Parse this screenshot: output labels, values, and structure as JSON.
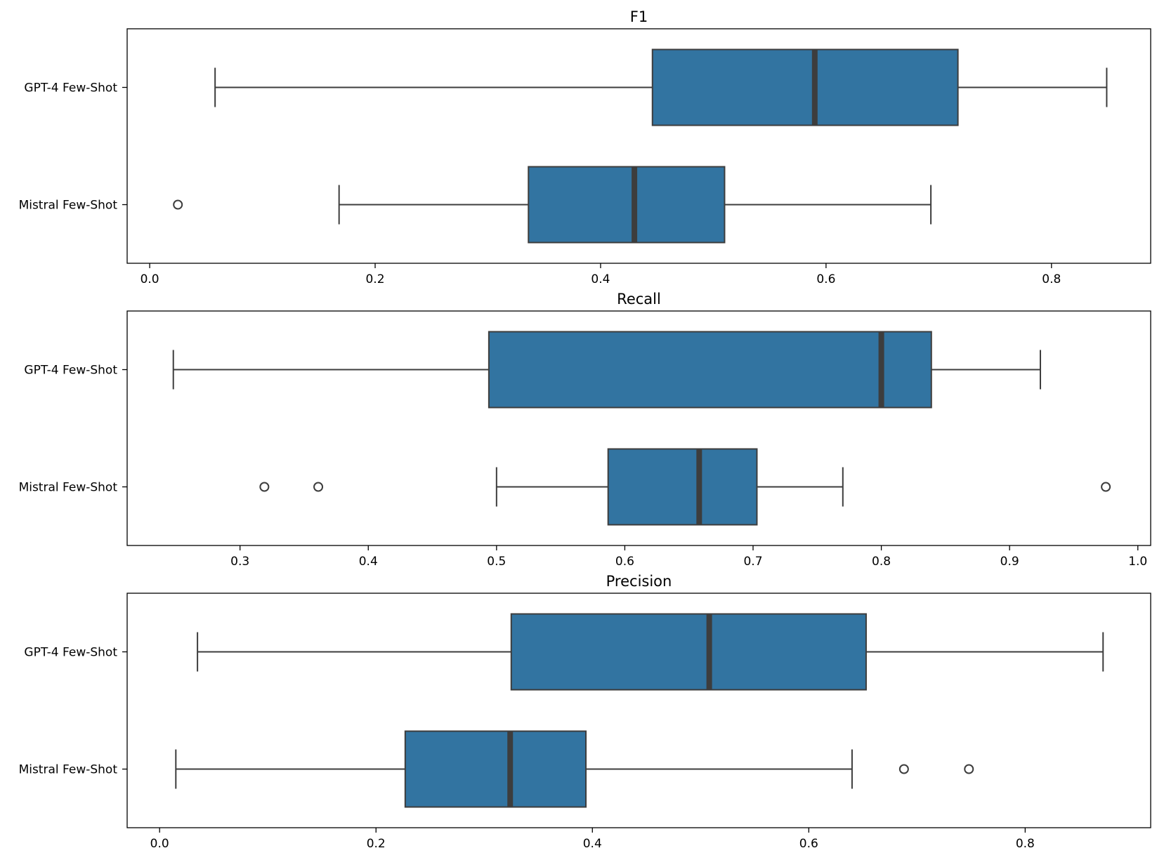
{
  "chart_data": [
    {
      "type": "boxplot",
      "orientation": "horizontal",
      "title": "F1",
      "xlabel": "",
      "ylabel": "",
      "xlim": [
        -0.02,
        0.888
      ],
      "xticks": [
        0.0,
        0.2,
        0.4,
        0.6,
        0.8
      ],
      "tick_labels": [
        "0.0",
        "0.2",
        "0.4",
        "0.6",
        "0.8"
      ],
      "categories": [
        "GPT-4 Few-Shot",
        "Mistral Few-Shot"
      ],
      "series": [
        {
          "name": "GPT-4 Few-Shot",
          "whisker_low": 0.058,
          "q1": 0.446,
          "median": 0.59,
          "q3": 0.717,
          "whisker_high": 0.849,
          "outliers": []
        },
        {
          "name": "Mistral Few-Shot",
          "whisker_low": 0.168,
          "q1": 0.336,
          "median": 0.43,
          "q3": 0.51,
          "whisker_high": 0.693,
          "outliers": [
            0.025
          ]
        }
      ]
    },
    {
      "type": "boxplot",
      "orientation": "horizontal",
      "title": "Recall",
      "xlabel": "",
      "ylabel": "",
      "xlim": [
        0.212,
        1.01
      ],
      "xticks": [
        0.3,
        0.4,
        0.5,
        0.6,
        0.7,
        0.8,
        0.9,
        1.0
      ],
      "tick_labels": [
        "0.3",
        "0.4",
        "0.5",
        "0.6",
        "0.7",
        "0.8",
        "0.9",
        "1.0"
      ],
      "categories": [
        "GPT-4 Few-Shot",
        "Mistral Few-Shot"
      ],
      "series": [
        {
          "name": "GPT-4 Few-Shot",
          "whisker_low": 0.248,
          "q1": 0.494,
          "median": 0.8,
          "q3": 0.839,
          "whisker_high": 0.924,
          "outliers": []
        },
        {
          "name": "Mistral Few-Shot",
          "whisker_low": 0.5,
          "q1": 0.587,
          "median": 0.658,
          "q3": 0.703,
          "whisker_high": 0.77,
          "outliers": [
            0.319,
            0.361,
            0.975
          ]
        }
      ]
    },
    {
      "type": "boxplot",
      "orientation": "horizontal",
      "title": "Precision",
      "xlabel": "",
      "ylabel": "",
      "xlim": [
        -0.03,
        0.916
      ],
      "xticks": [
        0.0,
        0.2,
        0.4,
        0.6,
        0.8
      ],
      "tick_labels": [
        "0.0",
        "0.2",
        "0.4",
        "0.6",
        "0.8"
      ],
      "categories": [
        "GPT-4 Few-Shot",
        "Mistral Few-Shot"
      ],
      "series": [
        {
          "name": "GPT-4 Few-Shot",
          "whisker_low": 0.035,
          "q1": 0.325,
          "median": 0.508,
          "q3": 0.653,
          "whisker_high": 0.872,
          "outliers": []
        },
        {
          "name": "Mistral Few-Shot",
          "whisker_low": 0.015,
          "q1": 0.227,
          "median": 0.324,
          "q3": 0.394,
          "whisker_high": 0.64,
          "outliers": [
            0.688,
            0.748
          ]
        }
      ]
    }
  ],
  "colors": {
    "box_fill": "#3274a1",
    "box_edge": "#3d3d3d",
    "axis": "#000000",
    "background": "#ffffff"
  }
}
